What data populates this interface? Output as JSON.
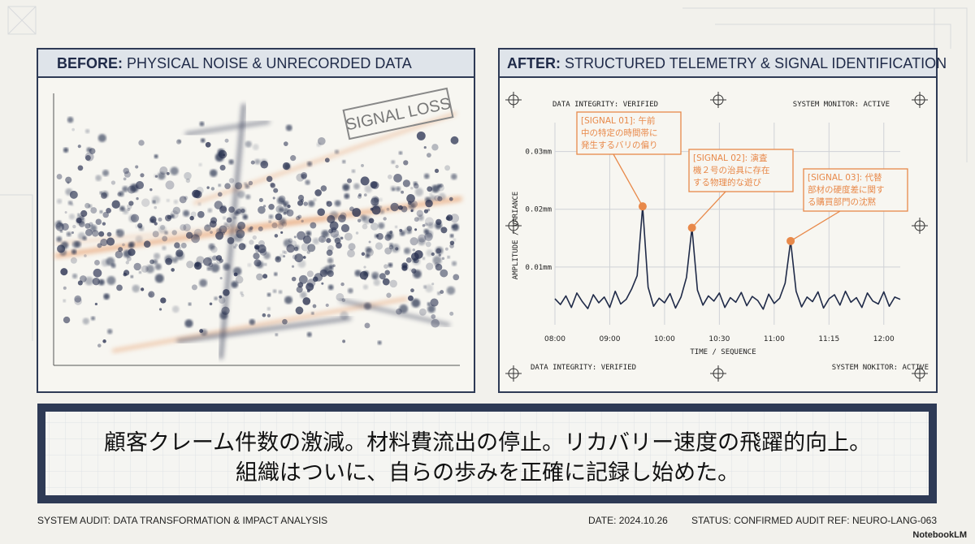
{
  "panels": {
    "before": {
      "label": "BEFORE:",
      "title": "PHYSICAL NOISE & UNRECORDED DATA",
      "stamp": "SIGNAL LOSS"
    },
    "after": {
      "label": "AFTER:",
      "title": "STRUCTURED TELEMETRY & SIGNAL IDENTIFICATION",
      "status": [
        "DATA INTEGRITY: VERIFIED",
        "SYSTEM MONITOR: ACTIVE",
        "DATA INTEGRITY: VERIFIED",
        "SYSTEM NOKITOR: ACTIVE"
      ]
    }
  },
  "chart_data": {
    "type": "line",
    "xlabel": "TIME / SEQUENCE",
    "ylabel": "AMPLITUDE / VARIANCE",
    "x": [
      0,
      0.1,
      0.2,
      0.3,
      0.4,
      0.5,
      0.6,
      0.7,
      0.8,
      0.9,
      1,
      1.1,
      1.2,
      1.3,
      1.4,
      1.5,
      1.6,
      1.7,
      1.8,
      1.9,
      2,
      2.1,
      2.2,
      2.3,
      2.4,
      2.5,
      2.6,
      2.7,
      2.8,
      2.9,
      3,
      3.1,
      3.2,
      3.3,
      3.4,
      3.5,
      3.6,
      3.7,
      3.8,
      3.9,
      4,
      4.1,
      4.2,
      4.3,
      4.4,
      4.5,
      4.6,
      4.7,
      4.8,
      4.9,
      5,
      5.1,
      5.2,
      5.3,
      5.4,
      5.5,
      5.6,
      5.7,
      5.8,
      5.9,
      6,
      6.1,
      6.2,
      6.3
    ],
    "values": [
      0.0045,
      0.0035,
      0.005,
      0.003,
      0.0055,
      0.004,
      0.0028,
      0.0052,
      0.0038,
      0.0048,
      0.003,
      0.0058,
      0.0036,
      0.0044,
      0.0062,
      0.0085,
      0.0205,
      0.0065,
      0.0032,
      0.0046,
      0.0038,
      0.0054,
      0.0029,
      0.0048,
      0.0082,
      0.0168,
      0.006,
      0.0034,
      0.005,
      0.0041,
      0.0055,
      0.003,
      0.0047,
      0.0039,
      0.0056,
      0.0033,
      0.0049,
      0.0042,
      0.0027,
      0.0053,
      0.0037,
      0.0046,
      0.0072,
      0.0145,
      0.0058,
      0.0031,
      0.0048,
      0.004,
      0.0057,
      0.0029,
      0.0045,
      0.0052,
      0.0034,
      0.0058,
      0.0039,
      0.0047,
      0.003,
      0.0055,
      0.0041,
      0.0036,
      0.0057,
      0.0032,
      0.0048,
      0.0044
    ],
    "color": "#1f2a48",
    "annotation_color": "#e8894a",
    "xlim": [
      0,
      6.3
    ],
    "xticks": [
      {
        "value": 0,
        "label": "08:00"
      },
      {
        "value": 1,
        "label": "09:00"
      },
      {
        "value": 2,
        "label": "10:00"
      },
      {
        "value": 3,
        "label": "10:30"
      },
      {
        "value": 4,
        "label": "11:00"
      },
      {
        "value": 5,
        "label": "11:15"
      },
      {
        "value": 6,
        "label": "12:00"
      }
    ],
    "ylim": [
      0,
      0.035
    ],
    "yticks": [
      {
        "value": 0.01,
        "label": "0.01mm"
      },
      {
        "value": 0.02,
        "label": "0.02mm"
      },
      {
        "value": 0.03,
        "label": "0.03mm"
      }
    ],
    "grid": true,
    "annotations": [
      [
        "[SIGNAL 01]: 午前",
        "中の特定の時間帯に",
        "発生するバリの偏り"
      ],
      [
        "[SIGNAL 02]: 演査",
        "機２号の治具に存在",
        "する物理的な遊び"
      ],
      [
        "[SIGNAL 03]: 代替",
        "部材の硬度差に関す",
        "る購買部門の沈黙"
      ]
    ]
  },
  "caption": [
    "顧客クレーム件数の激減。材料費流出の停止。リカバリー速度の飛躍的向上。",
    "組織はついに、自らの歩みを正確に記録し始めた。"
  ],
  "footer": {
    "left": "SYSTEM AUDIT: DATA TRANSFORMATION & IMPACT ANALYSIS",
    "date": "DATE: 2024.10.26",
    "status": "STATUS: CONFIRMED",
    "ref": "AUDIT REF: NEURO-LANG-063",
    "brand": "NotebookLM"
  }
}
